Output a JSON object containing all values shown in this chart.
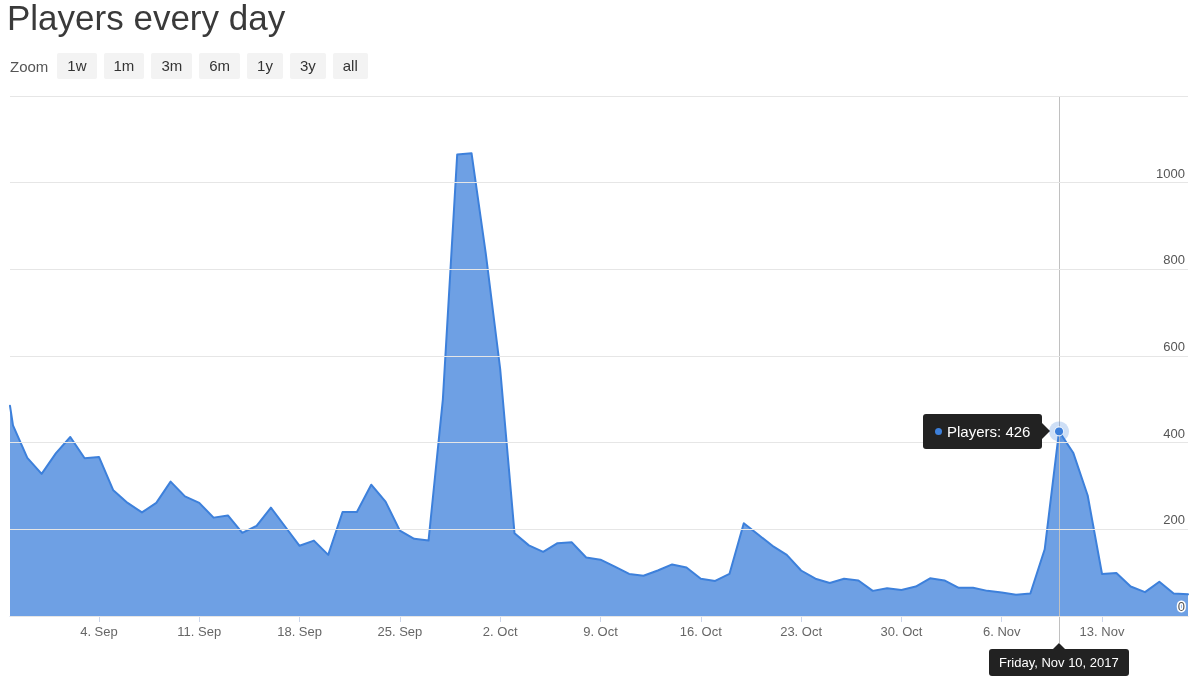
{
  "chart_data": {
    "type": "area",
    "title": "Players every day",
    "x": [
      "2017-08-28T19:00",
      "2017-08-29",
      "2017-08-30",
      "2017-08-31",
      "2017-09-01",
      "2017-09-02",
      "2017-09-03",
      "2017-09-04",
      "2017-09-05",
      "2017-09-06",
      "2017-09-07",
      "2017-09-08",
      "2017-09-09",
      "2017-09-10",
      "2017-09-11",
      "2017-09-12",
      "2017-09-13",
      "2017-09-14",
      "2017-09-15",
      "2017-09-16",
      "2017-09-17",
      "2017-09-18",
      "2017-09-19",
      "2017-09-20",
      "2017-09-21",
      "2017-09-22",
      "2017-09-23",
      "2017-09-24",
      "2017-09-25",
      "2017-09-26",
      "2017-09-27",
      "2017-09-28",
      "2017-09-29",
      "2017-09-30",
      "2017-10-01",
      "2017-10-02",
      "2017-10-03",
      "2017-10-04",
      "2017-10-05",
      "2017-10-06",
      "2017-10-07",
      "2017-10-08",
      "2017-10-09",
      "2017-10-10",
      "2017-10-11",
      "2017-10-12",
      "2017-10-13",
      "2017-10-14",
      "2017-10-15",
      "2017-10-16",
      "2017-10-17",
      "2017-10-18",
      "2017-10-19",
      "2017-10-20",
      "2017-10-21",
      "2017-10-22",
      "2017-10-23",
      "2017-10-24",
      "2017-10-25",
      "2017-10-26",
      "2017-10-27",
      "2017-10-28",
      "2017-10-29",
      "2017-10-30",
      "2017-10-31",
      "2017-11-01",
      "2017-11-02",
      "2017-11-03",
      "2017-11-04",
      "2017-11-05",
      "2017-11-06",
      "2017-11-07",
      "2017-11-08",
      "2017-11-09",
      "2017-11-10",
      "2017-11-11",
      "2017-11-12",
      "2017-11-13",
      "2017-11-14",
      "2017-11-15",
      "2017-11-16",
      "2017-11-17",
      "2017-11-18",
      "2017-11-19"
    ],
    "series": [
      {
        "color": "#3d80db",
        "values": [
          485,
          440,
          365,
          328,
          376,
          413,
          364,
          367,
          290,
          261,
          239,
          261,
          310,
          276,
          261,
          227,
          232,
          192,
          208,
          250,
          206,
          162,
          174,
          141,
          240,
          240,
          303,
          264,
          197,
          178,
          174,
          500,
          1065,
          1068,
          835,
          570,
          191,
          163,
          148,
          168,
          170,
          135,
          130,
          114,
          97,
          93,
          105,
          119,
          112,
          86,
          81,
          97,
          214,
          188,
          162,
          141,
          105,
          86,
          76,
          86,
          82,
          58,
          64,
          60,
          68,
          87,
          82,
          65,
          65,
          58,
          54,
          49,
          52,
          154,
          426,
          376,
          278,
          97,
          99,
          68,
          55,
          79,
          52,
          50
        ]
      }
    ],
    "xlim": [
      "2017-08-28T19:00",
      "2017-11-19"
    ],
    "xticks": [
      {
        "value": "2017-09-04",
        "label": "4. Sep"
      },
      {
        "value": "2017-09-11",
        "label": "11. Sep"
      },
      {
        "value": "2017-09-18",
        "label": "18. Sep"
      },
      {
        "value": "2017-09-25",
        "label": "25. Sep"
      },
      {
        "value": "2017-10-02",
        "label": "2. Oct"
      },
      {
        "value": "2017-10-09",
        "label": "9. Oct"
      },
      {
        "value": "2017-10-16",
        "label": "16. Oct"
      },
      {
        "value": "2017-10-23",
        "label": "23. Oct"
      },
      {
        "value": "2017-10-30",
        "label": "30. Oct"
      },
      {
        "value": "2017-11-06",
        "label": "6. Nov"
      },
      {
        "value": "2017-11-13",
        "label": "13. Nov"
      }
    ],
    "ylim": [
      0,
      1200
    ],
    "yticks": [
      0,
      200,
      400,
      600,
      800,
      1000,
      {
        "value": 1200,
        "label": null
      }
    ],
    "grid": "y",
    "marker": "none",
    "ref_lines": [
      {
        "axis": "x",
        "value": "2017-11-10",
        "label": "Friday, Nov 10, 2017",
        "color": "#c0c0c0"
      }
    ],
    "annotations": [
      "Zoom",
      "1w",
      "1m",
      "3m",
      "6m",
      "1y",
      "3y",
      "all",
      {
        "text": "Players: 426",
        "x": "2017-11-10",
        "y": 426
      }
    ]
  }
}
